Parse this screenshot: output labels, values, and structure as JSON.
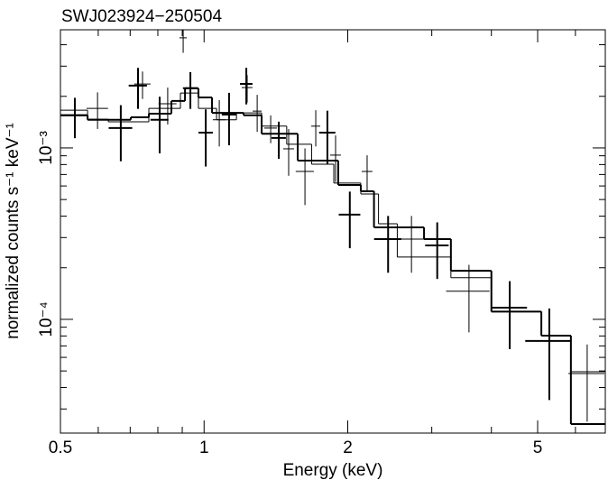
{
  "chart_data": {
    "type": "spectrum",
    "title": "SWJ023924−250504",
    "x_label": "Energy (keV)",
    "y_label": "normalized counts s⁻¹ keV⁻¹",
    "log_x": true,
    "log_y": true,
    "xlim": [
      0.5,
      6.93
    ],
    "ylim": [
      2.17e-05,
      0.00489
    ],
    "xticks": [
      0.5,
      1,
      2,
      5
    ],
    "xminorticks": [
      0.6,
      0.7,
      0.8,
      0.9,
      3,
      4,
      6
    ],
    "yticks": [
      {
        "value": 0.001,
        "label": "10⁻³"
      },
      {
        "value": 0.0001,
        "label": "10⁻⁴"
      }
    ],
    "yminorticks": [
      3e-05,
      4e-05,
      5e-05,
      6e-05,
      7e-05,
      8e-05,
      9e-05,
      0.0002,
      0.0003,
      0.0004,
      0.0005,
      0.0006,
      0.0007,
      0.0008,
      0.0009,
      0.002,
      0.003,
      0.004
    ],
    "series": [
      {
        "color": "#000000",
        "line_width": 2,
        "x": [
          0.536,
          0.669,
          0.727,
          0.807,
          0.936,
          1.008,
          1.128,
          1.226,
          1.434,
          1.813,
          2.02,
          2.43,
          3.08,
          4.37,
          5.29
        ],
        "xerr": [
          0.035,
          0.038,
          0.032,
          0.035,
          0.033,
          0.035,
          0.039,
          0.037,
          0.05,
          0.071,
          0.105,
          0.159,
          0.174,
          0.38,
          0.58
        ],
        "values": [
          0.00155,
          0.001306,
          0.00231,
          0.00146,
          0.00223,
          0.001229,
          0.001566,
          0.002364,
          0.001143,
          0.001229,
          0.000408,
          0.000294,
          0.00027,
          0.000117,
          7.48e-05
        ],
        "yerr": [
          0.00041,
          0.00047,
          0.00062,
          0.00053,
          0.00054,
          0.00045,
          0.00053,
          0.00057,
          0.00028,
          0.00042,
          0.000148,
          0.000107,
          9.8e-05,
          5e-05,
          4.1e-05
        ],
        "model_edges": [
          0.5,
          0.57,
          0.702,
          0.766,
          0.854,
          0.912,
          0.973,
          1.039,
          1.21,
          1.32,
          1.571,
          1.91,
          2.13,
          2.27,
          2.89,
          3.29,
          4.0,
          5.09,
          5.87,
          6.93
        ],
        "model_values": [
          0.00155,
          0.00146,
          0.00151,
          0.001585,
          0.00188,
          0.00223,
          0.00197,
          0.0016,
          0.00155,
          0.00121,
          0.000844,
          0.000608,
          0.000559,
          0.000344,
          0.000294,
          0.000192,
          0.000111,
          8.04e-05,
          2.45e-05
        ]
      },
      {
        "color": "#000000",
        "line_width": 1,
        "x": [
          0.598,
          0.743,
          0.839,
          0.904,
          1.076,
          1.231,
          1.292,
          1.379,
          1.504,
          1.627,
          1.714,
          1.886,
          2.196,
          2.72,
          3.59,
          6.35
        ],
        "xerr": [
          0.031,
          0.029,
          0.0365,
          0.016,
          0.033,
          0.032,
          0.028,
          0.042,
          0.039,
          0.071,
          0.037,
          0.049,
          0.057,
          0.19,
          0.375,
          0.55
        ],
        "values": [
          0.0017,
          0.00236,
          0.00181,
          0.00439,
          0.00146,
          0.00225,
          0.00164,
          0.001306,
          0.000988,
          0.000729,
          0.00134,
          0.000908,
          0.000729,
          0.000294,
          0.000146,
          4.83e-05
        ],
        "yerr": [
          0.00041,
          0.00043,
          0.00044,
          0.0008,
          0.00044,
          0.00041,
          0.0004,
          0.00024,
          0.0003,
          0.000265,
          0.00032,
          0.000275,
          0.000177,
          0.000107,
          6.2e-05,
          2.3e-05
        ],
        "model_edges": [
          0.5,
          0.57,
          0.63,
          0.766,
          0.892,
          0.973,
          1.062,
          1.169,
          1.32,
          1.49,
          1.68,
          1.87,
          2.13,
          2.32,
          2.54,
          3.29,
          4.0,
          5.09,
          5.87,
          6.93
        ],
        "model_values": [
          0.00166,
          0.00147,
          0.00142,
          0.0017,
          0.00209,
          0.0017,
          0.00146,
          0.0016,
          0.00134,
          0.00105,
          0.000804,
          0.000624,
          0.000539,
          0.000361,
          0.000231,
          0.000175,
          0.000111,
          8.04e-05,
          4.95e-05
        ]
      }
    ]
  }
}
